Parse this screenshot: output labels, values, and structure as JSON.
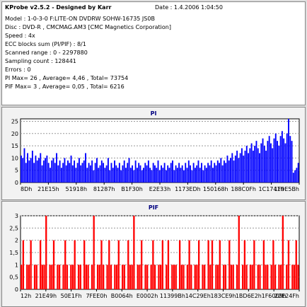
{
  "info": {
    "title": "KProbe v2.5.2 - Designed by Karr",
    "date": "Date : 1.4.2006 1:04:50",
    "lines": [
      "Model : 1-0-3-0 F:LITE-ON DVDRW SOHW-16735 JS0B",
      "Disc : DVD-R , CMCMAG.AM3 [CMC Magnetics Corporation]",
      "Speed : 4x",
      "ECC blocks sum (PI/PIF) : 8/1",
      "Scanned range : 0 - 2297880",
      "Sampling count : 128441",
      "Errors : 0",
      "PI Max= 26 , Average= 4,46 , Total= 73754",
      "PIF Max= 3 , Average= 0,05 , Total= 6216"
    ]
  },
  "colors": {
    "pi": "#0000ff",
    "pif": "#ff0000",
    "panel_title": "#000080"
  },
  "chart_data": [
    {
      "type": "bar",
      "title": "PI",
      "ylim": [
        0,
        26
      ],
      "yticks": [
        0,
        5,
        10,
        15,
        20,
        25
      ],
      "xticks": [
        "8Dh",
        "21E15h",
        "51918h",
        "81287h",
        "B1F30h",
        "E2E33h",
        "1173EDh",
        "150168h",
        "188C0Fh",
        "1C1741h",
        "1F9E5Bh"
      ],
      "grid": true,
      "values": [
        11,
        10,
        14,
        8,
        12,
        9,
        10,
        13,
        8,
        11,
        9,
        10,
        12,
        7,
        9,
        10,
        11,
        8,
        6,
        9,
        10,
        8,
        12,
        7,
        9,
        6,
        8,
        10,
        7,
        9,
        8,
        11,
        7,
        9,
        6,
        8,
        10,
        7,
        8,
        9,
        12,
        6,
        8,
        7,
        9,
        5,
        8,
        10,
        6,
        7,
        9,
        8,
        6,
        7,
        10,
        5,
        8,
        6,
        9,
        7,
        6,
        8,
        5,
        7,
        9,
        6,
        8,
        10,
        6,
        7,
        5,
        9,
        6,
        8,
        7,
        5,
        6,
        8,
        7,
        9,
        6,
        5,
        8,
        7,
        6,
        9,
        5,
        7,
        6,
        8,
        5,
        7,
        6,
        8,
        9,
        5,
        7,
        6,
        8,
        6,
        7,
        5,
        8,
        6,
        9,
        7,
        5,
        8,
        6,
        7,
        9,
        6,
        8,
        5,
        7,
        6,
        8,
        7,
        9,
        6,
        8,
        7,
        9,
        8,
        10,
        7,
        9,
        8,
        11,
        9,
        10,
        12,
        9,
        11,
        13,
        10,
        12,
        14,
        11,
        13,
        15,
        12,
        14,
        16,
        13,
        15,
        17,
        14,
        12,
        16,
        18,
        15,
        13,
        17,
        19,
        16,
        14,
        18,
        20,
        17,
        15,
        19,
        21,
        18,
        16,
        20,
        26,
        19,
        17,
        4,
        5,
        6,
        8
      ]
    },
    {
      "type": "bar",
      "title": "PIF",
      "ylim": [
        0,
        3
      ],
      "yticks": [
        0,
        0.5,
        1,
        1.5,
        2,
        2.5,
        3
      ],
      "ytick_labels": [
        "0",
        "0,5",
        "1",
        "1,5",
        "2",
        "2,5",
        "3"
      ],
      "xticks": [
        "12h",
        "21E49h",
        "50E1Fh",
        "7FEE0h",
        "B0064h",
        "E0002h",
        "11399Bh",
        "14C29Eh",
        "183CE9h",
        "1BD6E2h",
        "1F6009h",
        "22E24Fh"
      ],
      "grid": true,
      "values": [
        1,
        2,
        0,
        1,
        1,
        2,
        0,
        1,
        1,
        0,
        2,
        1,
        1,
        3,
        0,
        1,
        1,
        2,
        0,
        1,
        1,
        0,
        1,
        2,
        1,
        0,
        1,
        1,
        2,
        0,
        1,
        1,
        0,
        2,
        1,
        1,
        0,
        1,
        3,
        0,
        1,
        1,
        2,
        1,
        0,
        1,
        2,
        1,
        0,
        1,
        1,
        2,
        0,
        1,
        1,
        0,
        2,
        1,
        1,
        3,
        0,
        1,
        1,
        2,
        0,
        1,
        1,
        0,
        1,
        2,
        1,
        0,
        1,
        1,
        2,
        0,
        1,
        2,
        0,
        1,
        1,
        1,
        0,
        2,
        1,
        1,
        0,
        1,
        2,
        1,
        0,
        1,
        1,
        2,
        0,
        1,
        1,
        0,
        2,
        1,
        2,
        0,
        1,
        1,
        2,
        0,
        1,
        1,
        0,
        2,
        1,
        1,
        0,
        1,
        3,
        0,
        1,
        2,
        1,
        0,
        1,
        1,
        2,
        0,
        1,
        1,
        0,
        2,
        1,
        1,
        0,
        1,
        2,
        1,
        0,
        1,
        1,
        3,
        0,
        1,
        2,
        0,
        1,
        1,
        2,
        1
      ]
    }
  ]
}
